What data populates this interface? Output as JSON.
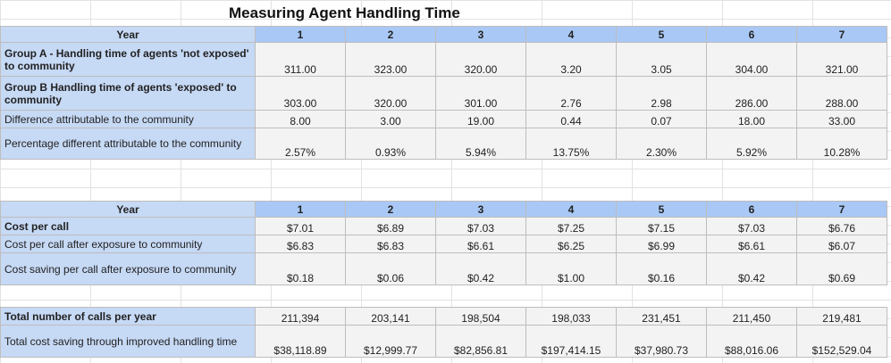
{
  "title": "Measuring Agent Handling Time",
  "section1": {
    "header_label": "Year",
    "years": [
      "1",
      "2",
      "3",
      "4",
      "5",
      "6",
      "7"
    ],
    "rows": [
      {
        "label": "Group A - Handling time of agents 'not exposed' to community",
        "bold": true,
        "values": [
          "311.00",
          "323.00",
          "320.00",
          "3.20",
          "3.05",
          "304.00",
          "321.00"
        ]
      },
      {
        "label": "Group B Handling time of agents 'exposed' to community",
        "bold": true,
        "values": [
          "303.00",
          "320.00",
          "301.00",
          "2.76",
          "2.98",
          "286.00",
          "288.00"
        ]
      },
      {
        "label": "Difference attributable to the community",
        "bold": false,
        "values": [
          "8.00",
          "3.00",
          "19.00",
          "0.44",
          "0.07",
          "18.00",
          "33.00"
        ]
      },
      {
        "label": "Percentage different attributable to the community",
        "bold": false,
        "values": [
          "2.57%",
          "0.93%",
          "5.94%",
          "13.75%",
          "2.30%",
          "5.92%",
          "10.28%"
        ]
      }
    ]
  },
  "section2": {
    "header_label": "Year",
    "years": [
      "1",
      "2",
      "3",
      "4",
      "5",
      "6",
      "7"
    ],
    "rows": [
      {
        "label": "Cost per call",
        "bold": true,
        "values": [
          "$7.01",
          "$6.89",
          "$7.03",
          "$7.25",
          "$7.15",
          "$7.03",
          "$6.76"
        ]
      },
      {
        "label": "Cost per call after exposure to community",
        "bold": false,
        "values": [
          "$6.83",
          "$6.83",
          "$6.61",
          "$6.25",
          "$6.99",
          "$6.61",
          "$6.07"
        ]
      },
      {
        "label": "Cost saving per call after exposure to community",
        "bold": false,
        "values": [
          "$0.18",
          "$0.06",
          "$0.42",
          "$1.00",
          "$0.16",
          "$0.42",
          "$0.69"
        ]
      }
    ]
  },
  "section3": {
    "rows": [
      {
        "label": "Total number of calls per year",
        "bold": true,
        "values": [
          "211,394",
          "203,141",
          "198,504",
          "198,033",
          "231,451",
          "211,450",
          "219,481"
        ]
      },
      {
        "label": "Total cost saving through improved handling time",
        "bold": false,
        "values": [
          "$38,118.89",
          "$12,999.77",
          "$82,856.81",
          "$197,414.15",
          "$37,980.73",
          "$88,016.06",
          "$152,529.04"
        ]
      }
    ]
  }
}
